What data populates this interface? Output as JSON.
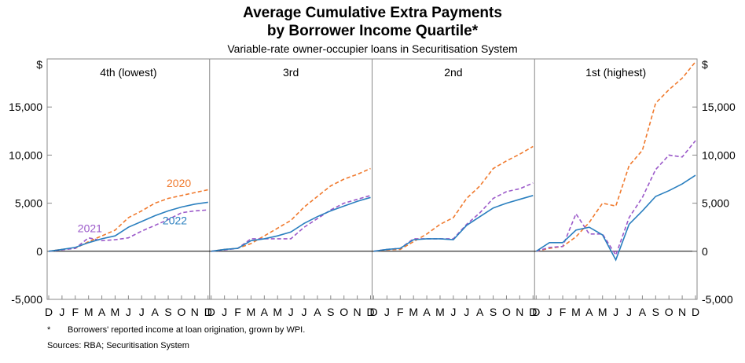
{
  "title_line1": "Average Cumulative Extra Payments",
  "title_line2": "by Borrower Income Quartile*",
  "subtitle": "Variable-rate owner-occupier loans in Securitisation System",
  "footnote_mark": "*",
  "footnote_text": "Borrowers' reported income at loan origination, grown by WPI.",
  "sources": "Sources: RBA; Securitisation System",
  "colors": {
    "2020": "#f07a2e",
    "2021": "#9b59c9",
    "2022": "#2a7fbf",
    "zero_line": "#000000",
    "frame": "#888888"
  },
  "chart_data": {
    "type": "line",
    "unit": "$",
    "y_ticks": [
      "-5,000",
      "0",
      "5,000",
      "10,000",
      "15,000"
    ],
    "ylim": [
      -5000,
      20000
    ],
    "x": [
      "D",
      "J",
      "F",
      "M",
      "A",
      "M",
      "J",
      "J",
      "A",
      "S",
      "O",
      "N",
      "D"
    ],
    "legend_in_panel": "4th (lowest)",
    "panels": [
      {
        "title": "4th (lowest)",
        "series": [
          {
            "name": "2020",
            "style": "dashed",
            "values": [
              0,
              200,
              300,
              1000,
              1600,
              2200,
              3500,
              4200,
              5000,
              5500,
              5800,
              6100,
              6400
            ]
          },
          {
            "name": "2021",
            "style": "dashed",
            "values": [
              0,
              150,
              300,
              1400,
              1100,
              1200,
              1400,
              2100,
              2700,
              3300,
              4000,
              4200,
              4300
            ]
          },
          {
            "name": "2022",
            "style": "solid",
            "values": [
              0,
              200,
              400,
              900,
              1300,
              1600,
              2500,
              3100,
              3700,
              4200,
              4600,
              4900,
              5100
            ]
          }
        ]
      },
      {
        "title": "3rd",
        "series": [
          {
            "name": "2020",
            "style": "dashed",
            "values": [
              0,
              200,
              300,
              800,
              1600,
              2400,
              3200,
              4600,
              5700,
              6800,
              7500,
              8000,
              8600
            ]
          },
          {
            "name": "2021",
            "style": "dashed",
            "values": [
              0,
              150,
              300,
              1300,
              1300,
              1300,
              1300,
              2500,
              3400,
              4300,
              5000,
              5400,
              5800
            ]
          },
          {
            "name": "2022",
            "style": "solid",
            "values": [
              0,
              200,
              300,
              1100,
              1300,
              1600,
              2000,
              2900,
              3600,
              4200,
              4700,
              5200,
              5600
            ]
          }
        ]
      },
      {
        "title": "2nd",
        "series": [
          {
            "name": "2020",
            "style": "dashed",
            "values": [
              0,
              150,
              200,
              1000,
              1800,
              2800,
              3500,
              5500,
              6800,
              8600,
              9400,
              10100,
              10900
            ]
          },
          {
            "name": "2021",
            "style": "dashed",
            "values": [
              0,
              200,
              300,
              1300,
              1300,
              1300,
              1300,
              2800,
              4000,
              5500,
              6200,
              6500,
              7100
            ]
          },
          {
            "name": "2022",
            "style": "solid",
            "values": [
              0,
              200,
              300,
              1200,
              1300,
              1300,
              1200,
              2700,
              3600,
              4500,
              5000,
              5400,
              5800
            ]
          }
        ]
      },
      {
        "title": "1st (highest)",
        "series": [
          {
            "name": "2020",
            "style": "dashed",
            "values": [
              0,
              300,
              500,
              1500,
              3000,
              5000,
              4700,
              8900,
              10500,
              15400,
              16800,
              18000,
              19700
            ]
          },
          {
            "name": "2021",
            "style": "dashed",
            "values": [
              0,
              400,
              500,
              3900,
              1800,
              1800,
              -400,
              3500,
              5600,
              8500,
              10000,
              9800,
              11500
            ]
          },
          {
            "name": "2022",
            "style": "solid",
            "values": [
              0,
              900,
              900,
              2200,
              2500,
              1700,
              -900,
              2800,
              4200,
              5700,
              6300,
              7000,
              7900
            ]
          }
        ]
      }
    ]
  }
}
